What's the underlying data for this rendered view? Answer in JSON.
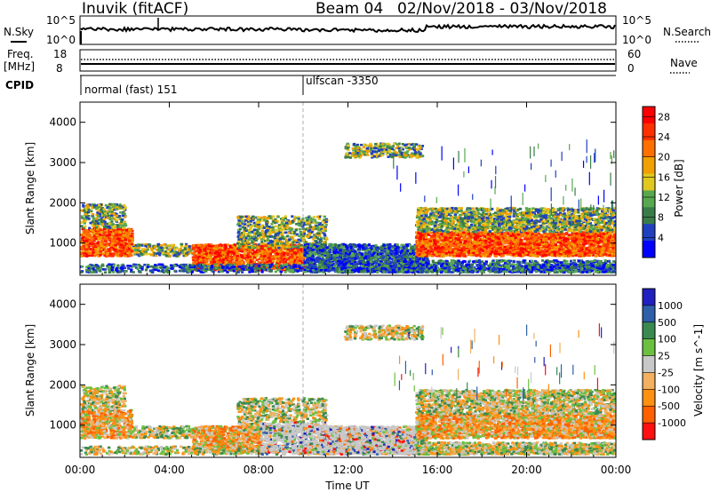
{
  "header": {
    "station": "Inuvik (fitACF)",
    "beam": "Beam 04",
    "date_range": "02/Nov/2018 - 03/Nov/2018"
  },
  "top_panels": {
    "nsky_label": "N.Sky",
    "nsky_ticks": [
      "10^5",
      "10^0"
    ],
    "nsearch_label": "N.Search",
    "nsearch_ticks": [
      "10^5",
      "10^0"
    ],
    "freq_label": "Freq.",
    "freq_unit": "[MHz]",
    "freq_ticks": [
      "18",
      "8"
    ],
    "nave_label": "Nave",
    "nave_ticks": [
      "60",
      "0"
    ],
    "cpid_label": "CPID",
    "cpid_modes": [
      {
        "name": "normal (fast) 151",
        "start_hour": 0
      },
      {
        "name": "ulfscan -3350",
        "start_hour": 10
      }
    ]
  },
  "colors": {
    "power_scale": [
      "#0000ff",
      "#2040c0",
      "#3a7c48",
      "#58a850",
      "#e0c820",
      "#f0a000",
      "#ff7000",
      "#ff3000",
      "#ff0000"
    ],
    "velocity_scale": [
      "#2020c0",
      "#2e5fa8",
      "#3a8a50",
      "#6cc040",
      "#c8c8c8",
      "#f2b060",
      "#ff9010",
      "#ff6000",
      "#ff1010"
    ]
  },
  "chart_data": [
    {
      "type": "heatmap",
      "name": "power",
      "ylabel": "Slant Range [km]",
      "xlabel": "",
      "x_range_hours": [
        0,
        24
      ],
      "ylim": [
        200,
        4500
      ],
      "xticks": [
        "00:00",
        "04:00",
        "08:00",
        "12:00",
        "16:00",
        "20:00",
        "00:00"
      ],
      "yticks": [
        1000,
        2000,
        3000,
        4000
      ],
      "colorbar": {
        "label": "Power [dB]",
        "ticks": [
          4,
          8,
          12,
          16,
          20,
          24,
          28
        ],
        "range": [
          0,
          30
        ]
      },
      "mode_change_hour": 10
    },
    {
      "type": "heatmap",
      "name": "velocity",
      "ylabel": "Slant Range [km]",
      "xlabel": "Time UT",
      "x_range_hours": [
        0,
        24
      ],
      "ylim": [
        200,
        4500
      ],
      "xticks": [
        "00:00",
        "04:00",
        "08:00",
        "12:00",
        "16:00",
        "20:00",
        "00:00"
      ],
      "yticks": [
        1000,
        2000,
        3000,
        4000
      ],
      "colorbar": {
        "label": "Velocity [m s^-1]",
        "ticks": [
          1000,
          500,
          100,
          25,
          -25,
          -100,
          -500,
          -1000
        ]
      },
      "mode_change_hour": 10
    }
  ]
}
